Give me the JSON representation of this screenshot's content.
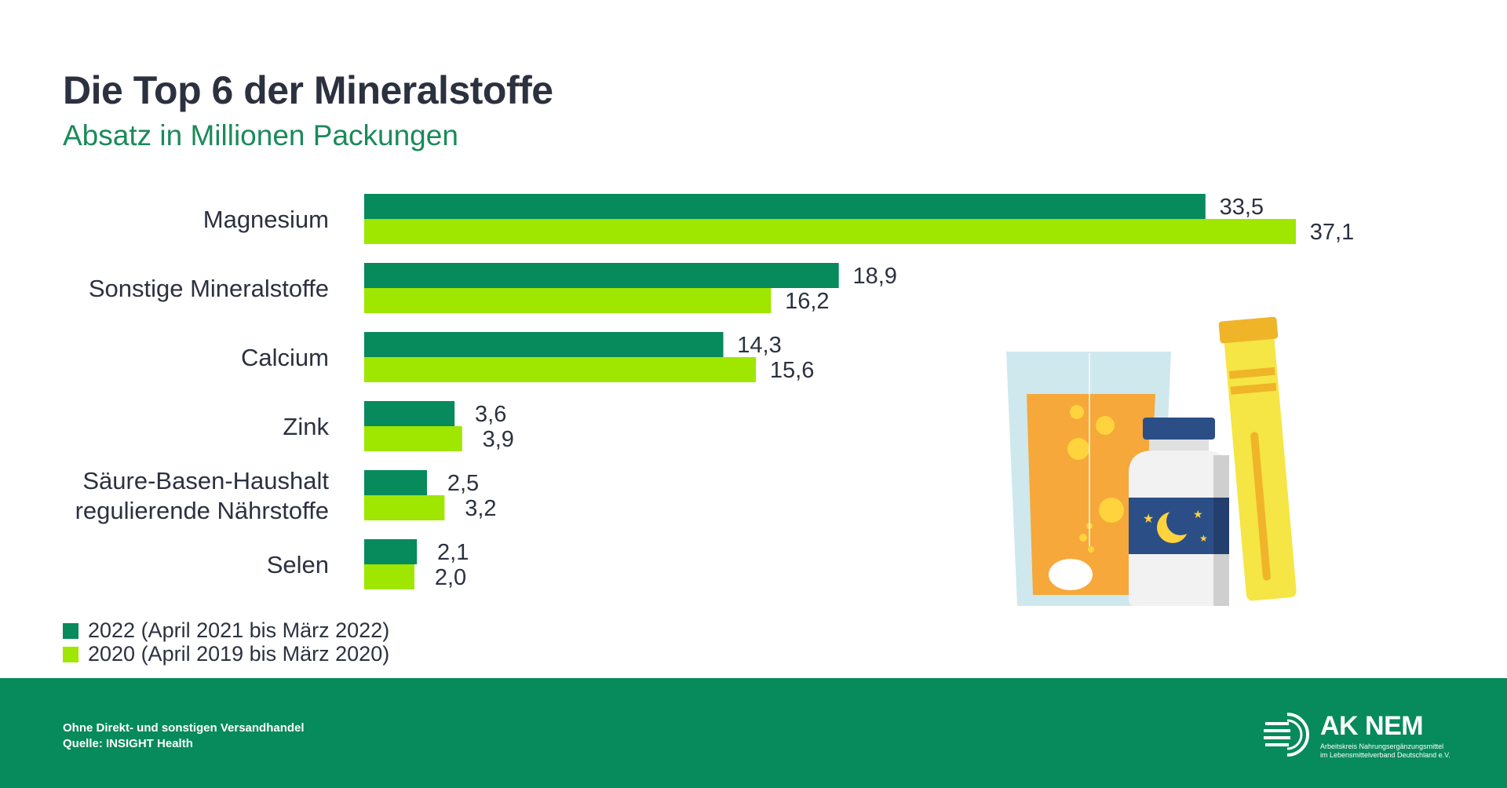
{
  "title": "Die Top 6 der Mineralstoffe",
  "subtitle": "Absatz in Millionen Packungen",
  "colors": {
    "series_2022": "#078a5c",
    "series_2020": "#9fe600",
    "footer": "#078a5c",
    "subtitle": "#1a8a5a"
  },
  "chart_data": {
    "type": "bar",
    "orientation": "horizontal",
    "categories": [
      "Magnesium",
      "Sonstige Mineralstoffe",
      "Calcium",
      "Zink",
      "Säure-Basen-Haushalt regulierende Nährstoffe",
      "Selen"
    ],
    "category_lines": [
      [
        "Magnesium"
      ],
      [
        "Sonstige Mineralstoffe"
      ],
      [
        "Calcium"
      ],
      [
        "Zink"
      ],
      [
        "Säure-Basen-Haushalt",
        "regulierende Nährstoffe"
      ],
      [
        "Selen"
      ]
    ],
    "series": [
      {
        "name": "2022 (April 2021 bis März 2022)",
        "values": [
          33.5,
          18.9,
          14.3,
          3.6,
          2.5,
          2.1
        ],
        "labels": [
          "33,5",
          "18,9",
          "14,3",
          "3,6",
          "2,5",
          "2,1"
        ],
        "color": "#078a5c"
      },
      {
        "name": "2020 (April 2019 bis März 2020)",
        "values": [
          37.1,
          16.2,
          15.6,
          3.9,
          3.2,
          2.0
        ],
        "labels": [
          "37,1",
          "16,2",
          "15,6",
          "3,9",
          "3,2",
          "2,0"
        ],
        "color": "#9fe600"
      }
    ],
    "xlim": [
      0,
      37.1
    ],
    "grid": false,
    "legend": "bottom-left"
  },
  "legend": {
    "items": [
      {
        "label": "2022 (April 2021 bis März 2022)",
        "color": "#078a5c"
      },
      {
        "label": "2020 (April 2019 bis März 2020)",
        "color": "#9fe600"
      }
    ]
  },
  "footer": {
    "note": "Ohne Direkt- und sonstigen Versandhandel",
    "source": "Quelle: INSIGHT Health"
  },
  "logo": {
    "name": "AK NEM",
    "sub_line_1": "Arbeitskreis Nahrungsergänzungsmittel",
    "sub_line_2": "im Lebensmittelverband Deutschland e.V."
  },
  "illustration": {
    "icon": "supplements-illustration"
  }
}
